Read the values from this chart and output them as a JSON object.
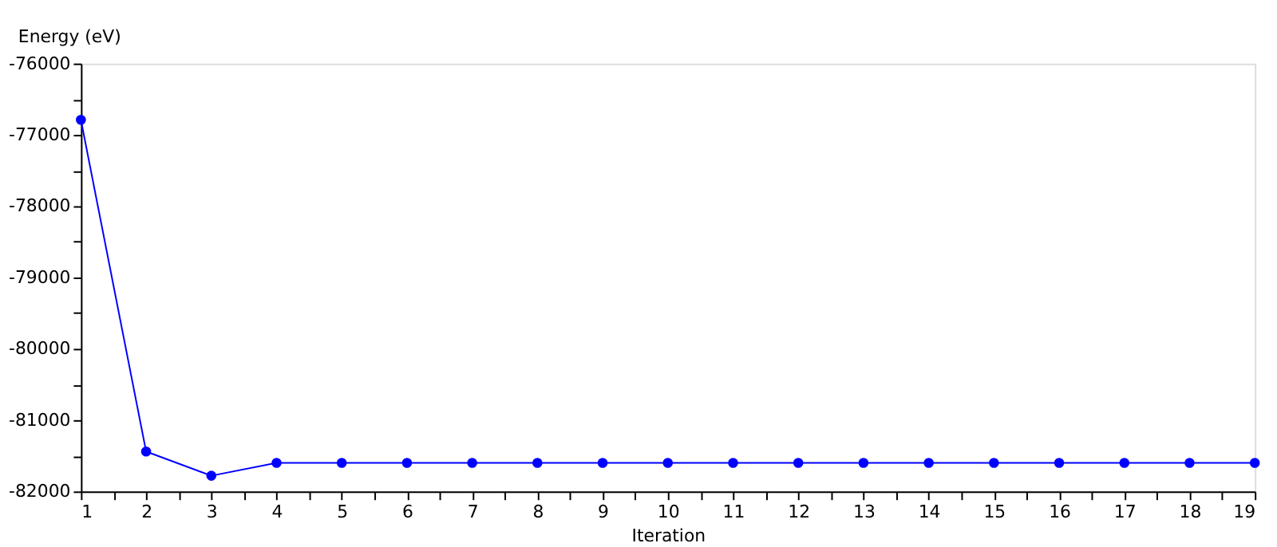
{
  "chart_data": {
    "type": "line",
    "xlabel": "Iteration",
    "ylabel": "Energy (eV)",
    "x": [
      1,
      2,
      3,
      4,
      5,
      6,
      7,
      8,
      9,
      10,
      11,
      12,
      13,
      14,
      15,
      16,
      17,
      18,
      19
    ],
    "series": [
      {
        "color": "#0000ff",
        "values": [
          -76790,
          -81440,
          -81780,
          -81600,
          -81600,
          -81600,
          -81600,
          -81600,
          -81600,
          -81600,
          -81600,
          -81600,
          -81600,
          -81600,
          -81600,
          -81600,
          -81600,
          -81600,
          -81600
        ]
      }
    ],
    "xlim": [
      1,
      19
    ],
    "xticks": [
      1,
      {
        "value": 1.5,
        "label": null
      },
      2,
      {
        "value": 2.5,
        "label": null
      },
      3,
      {
        "value": 3.5,
        "label": null
      },
      4,
      {
        "value": 4.5,
        "label": null
      },
      5,
      {
        "value": 5.5,
        "label": null
      },
      6,
      {
        "value": 6.5,
        "label": null
      },
      7,
      {
        "value": 7.5,
        "label": null
      },
      8,
      {
        "value": 8.5,
        "label": null
      },
      9,
      {
        "value": 9.5,
        "label": null
      },
      10,
      {
        "value": 10.5,
        "label": null
      },
      11,
      {
        "value": 11.5,
        "label": null
      },
      12,
      {
        "value": 12.5,
        "label": null
      },
      13,
      {
        "value": 13.5,
        "label": null
      },
      14,
      {
        "value": 14.5,
        "label": null
      },
      15,
      {
        "value": 15.5,
        "label": null
      },
      16,
      {
        "value": 16.5,
        "label": null
      },
      17,
      {
        "value": 17.5,
        "label": null
      },
      18,
      {
        "value": 18.5,
        "label": null
      },
      19
    ],
    "ylim": [
      -82000,
      -76000
    ],
    "yticks": [
      -82000,
      {
        "value": -81500,
        "label": null
      },
      -81000,
      {
        "value": -80500,
        "label": null
      },
      -80000,
      {
        "value": -79500,
        "label": null
      },
      -79000,
      {
        "value": -78500,
        "label": null
      },
      -78000,
      {
        "value": -77500,
        "label": null
      },
      -77000,
      {
        "value": -76500,
        "label": null
      },
      -76000
    ],
    "marker": "circle",
    "line_style": "solid",
    "grid": false
  }
}
